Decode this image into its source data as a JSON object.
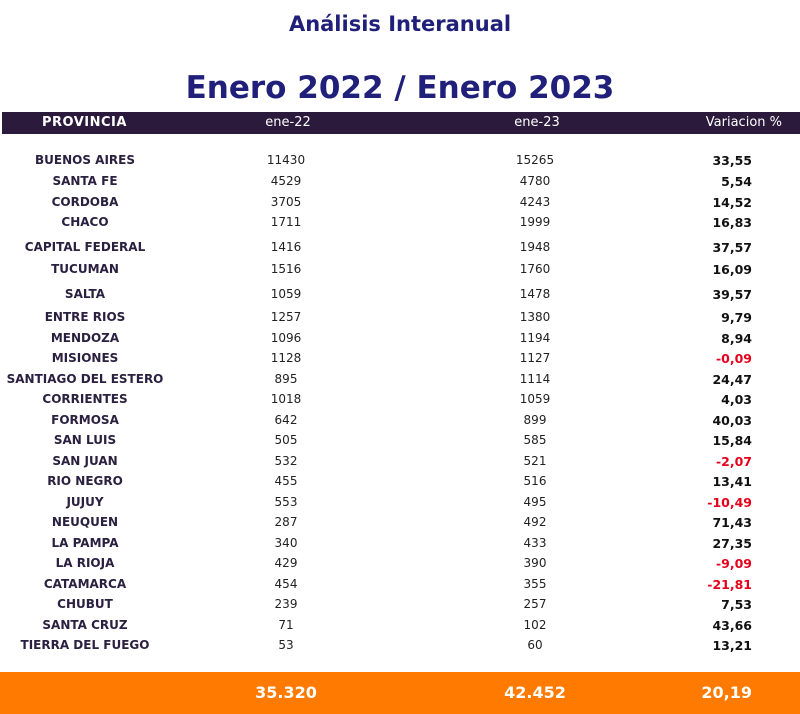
{
  "header": {
    "subtitle": "Análisis Interanual",
    "title": "Enero 2022 / Enero 2023"
  },
  "table": {
    "columns": [
      "PROVINCIA",
      "ene-22",
      "ene-23",
      "Variacion %"
    ],
    "rows": [
      {
        "provincia": "BUENOS AIRES",
        "ene22": "11430",
        "ene23": "15265",
        "variacion": "33,55",
        "negative": false
      },
      {
        "provincia": "SANTA FE",
        "ene22": "4529",
        "ene23": "4780",
        "variacion": "5,54",
        "negative": false
      },
      {
        "provincia": "CORDOBA",
        "ene22": "3705",
        "ene23": "4243",
        "variacion": "14,52",
        "negative": false
      },
      {
        "provincia": "CHACO",
        "ene22": "1711",
        "ene23": "1999",
        "variacion": "16,83",
        "negative": false
      },
      {
        "provincia": "CAPITAL FEDERAL",
        "ene22": "1416",
        "ene23": "1948",
        "variacion": "37,57",
        "negative": false
      },
      {
        "provincia": "TUCUMAN",
        "ene22": "1516",
        "ene23": "1760",
        "variacion": "16,09",
        "negative": false
      },
      {
        "provincia": "SALTA",
        "ene22": "1059",
        "ene23": "1478",
        "variacion": "39,57",
        "negative": false
      },
      {
        "provincia": "ENTRE RIOS",
        "ene22": "1257",
        "ene23": "1380",
        "variacion": "9,79",
        "negative": false
      },
      {
        "provincia": "MENDOZA",
        "ene22": "1096",
        "ene23": "1194",
        "variacion": "8,94",
        "negative": false
      },
      {
        "provincia": "MISIONES",
        "ene22": "1128",
        "ene23": "1127",
        "variacion": "-0,09",
        "negative": true
      },
      {
        "provincia": "SANTIAGO DEL ESTERO",
        "ene22": "895",
        "ene23": "1114",
        "variacion": "24,47",
        "negative": false
      },
      {
        "provincia": "CORRIENTES",
        "ene22": "1018",
        "ene23": "1059",
        "variacion": "4,03",
        "negative": false
      },
      {
        "provincia": "FORMOSA",
        "ene22": "642",
        "ene23": "899",
        "variacion": "40,03",
        "negative": false
      },
      {
        "provincia": "SAN LUIS",
        "ene22": "505",
        "ene23": "585",
        "variacion": "15,84",
        "negative": false
      },
      {
        "provincia": "SAN JUAN",
        "ene22": "532",
        "ene23": "521",
        "variacion": "-2,07",
        "negative": true
      },
      {
        "provincia": "RIO NEGRO",
        "ene22": "455",
        "ene23": "516",
        "variacion": "13,41",
        "negative": false
      },
      {
        "provincia": "JUJUY",
        "ene22": "553",
        "ene23": "495",
        "variacion": "-10,49",
        "negative": true
      },
      {
        "provincia": "NEUQUEN",
        "ene22": "287",
        "ene23": "492",
        "variacion": "71,43",
        "negative": false
      },
      {
        "provincia": "LA PAMPA",
        "ene22": "340",
        "ene23": "433",
        "variacion": "27,35",
        "negative": false
      },
      {
        "provincia": "LA RIOJA",
        "ene22": "429",
        "ene23": "390",
        "variacion": "-9,09",
        "negative": true
      },
      {
        "provincia": "CATAMARCA",
        "ene22": "454",
        "ene23": "355",
        "variacion": "-21,81",
        "negative": true
      },
      {
        "provincia": "CHUBUT",
        "ene22": "239",
        "ene23": "257",
        "variacion": "7,53",
        "negative": false
      },
      {
        "provincia": "SANTA CRUZ",
        "ene22": "71",
        "ene23": "102",
        "variacion": "43,66",
        "negative": false
      },
      {
        "provincia": "TIERRA DEL FUEGO",
        "ene22": "53",
        "ene23": "60",
        "variacion": "13,21",
        "negative": false
      }
    ],
    "totals": {
      "ene22": "35.320",
      "ene23": "42.452",
      "variacion": "20,19"
    }
  },
  "colors": {
    "title": "#20207a",
    "header_bg": "#2b1a3c",
    "negative": "#e5001c",
    "footer_bg": "#ff7a00"
  }
}
